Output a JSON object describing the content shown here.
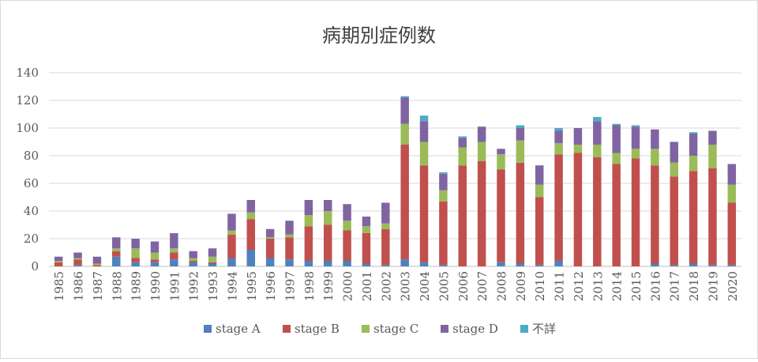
{
  "chart_data": {
    "type": "bar",
    "stacked": true,
    "title": "病期別症例数",
    "xlabel": "",
    "ylabel": "",
    "ylim": [
      0,
      140
    ],
    "yticks": [
      0,
      20,
      40,
      60,
      80,
      100,
      120,
      140
    ],
    "grid": true,
    "legend_position": "bottom",
    "categories": [
      "1985",
      "1986",
      "1987",
      "1988",
      "1989",
      "1990",
      "1991",
      "1992",
      "1993",
      "1994",
      "1995",
      "1996",
      "1997",
      "1998",
      "1999",
      "2000",
      "2001",
      "2002",
      "2003",
      "2004",
      "2005",
      "2006",
      "2007",
      "2008",
      "2009",
      "2010",
      "2011",
      "2012",
      "2013",
      "2014",
      "2015",
      "2016",
      "2017",
      "2018",
      "2019",
      "2020"
    ],
    "series": [
      {
        "name": "stage A",
        "color": "#4f81bd",
        "values": [
          0,
          1,
          0,
          7,
          3,
          3,
          5,
          3,
          2,
          6,
          12,
          6,
          5,
          4,
          4,
          4,
          2,
          1,
          5,
          3,
          1,
          0,
          0,
          3,
          2,
          1,
          4,
          0,
          0,
          0,
          0,
          2,
          1,
          2,
          1,
          1
        ]
      },
      {
        "name": "stage B",
        "color": "#c0504d",
        "values": [
          3,
          4,
          1,
          4,
          3,
          2,
          5,
          1,
          1,
          17,
          22,
          14,
          16,
          25,
          26,
          22,
          22,
          26,
          83,
          70,
          46,
          73,
          76,
          67,
          73,
          49,
          77,
          82,
          79,
          74,
          78,
          71,
          64,
          67,
          70,
          45
        ]
      },
      {
        "name": "stage C",
        "color": "#9bbb59",
        "values": [
          1,
          1,
          1,
          2,
          7,
          5,
          3,
          2,
          4,
          3,
          5,
          1,
          2,
          8,
          10,
          7,
          5,
          4,
          15,
          17,
          8,
          13,
          14,
          11,
          16,
          9,
          8,
          6,
          9,
          8,
          7,
          12,
          10,
          11,
          17,
          13
        ]
      },
      {
        "name": "stage D",
        "color": "#8064a2",
        "values": [
          3,
          4,
          5,
          8,
          7,
          8,
          11,
          5,
          6,
          12,
          9,
          6,
          10,
          11,
          8,
          12,
          7,
          15,
          19,
          15,
          12,
          7,
          11,
          4,
          9,
          14,
          9,
          12,
          17,
          20,
          16,
          14,
          15,
          16,
          10,
          15
        ]
      },
      {
        "name": "不詳",
        "color": "#4bacc6",
        "values": [
          0,
          0,
          0,
          0,
          0,
          0,
          0,
          0,
          0,
          0,
          0,
          0,
          0,
          0,
          0,
          0,
          0,
          0,
          1,
          4,
          1,
          1,
          0,
          0,
          2,
          0,
          2,
          0,
          3,
          1,
          1,
          0,
          0,
          1,
          0,
          0
        ]
      }
    ]
  }
}
